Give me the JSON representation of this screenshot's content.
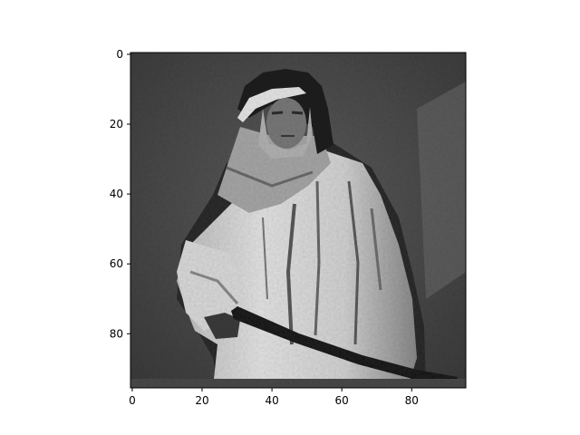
{
  "chart_data": {
    "type": "heatmap",
    "colormap": "gray",
    "image_shape": [
      96,
      96
    ],
    "origin": "upper",
    "xlim": [
      -0.5,
      95.5
    ],
    "ylim": [
      95.5,
      -0.5
    ],
    "x_ticks": [
      0,
      20,
      40,
      60,
      80
    ],
    "x_tick_labels": [
      "0",
      "20",
      "40",
      "60",
      "80"
    ],
    "y_ticks": [
      0,
      20,
      40,
      60,
      80
    ],
    "y_tick_labels": [
      "0",
      "20",
      "40",
      "60",
      "80"
    ],
    "grid": false,
    "title": "",
    "xlabel": "",
    "ylabel": ""
  }
}
